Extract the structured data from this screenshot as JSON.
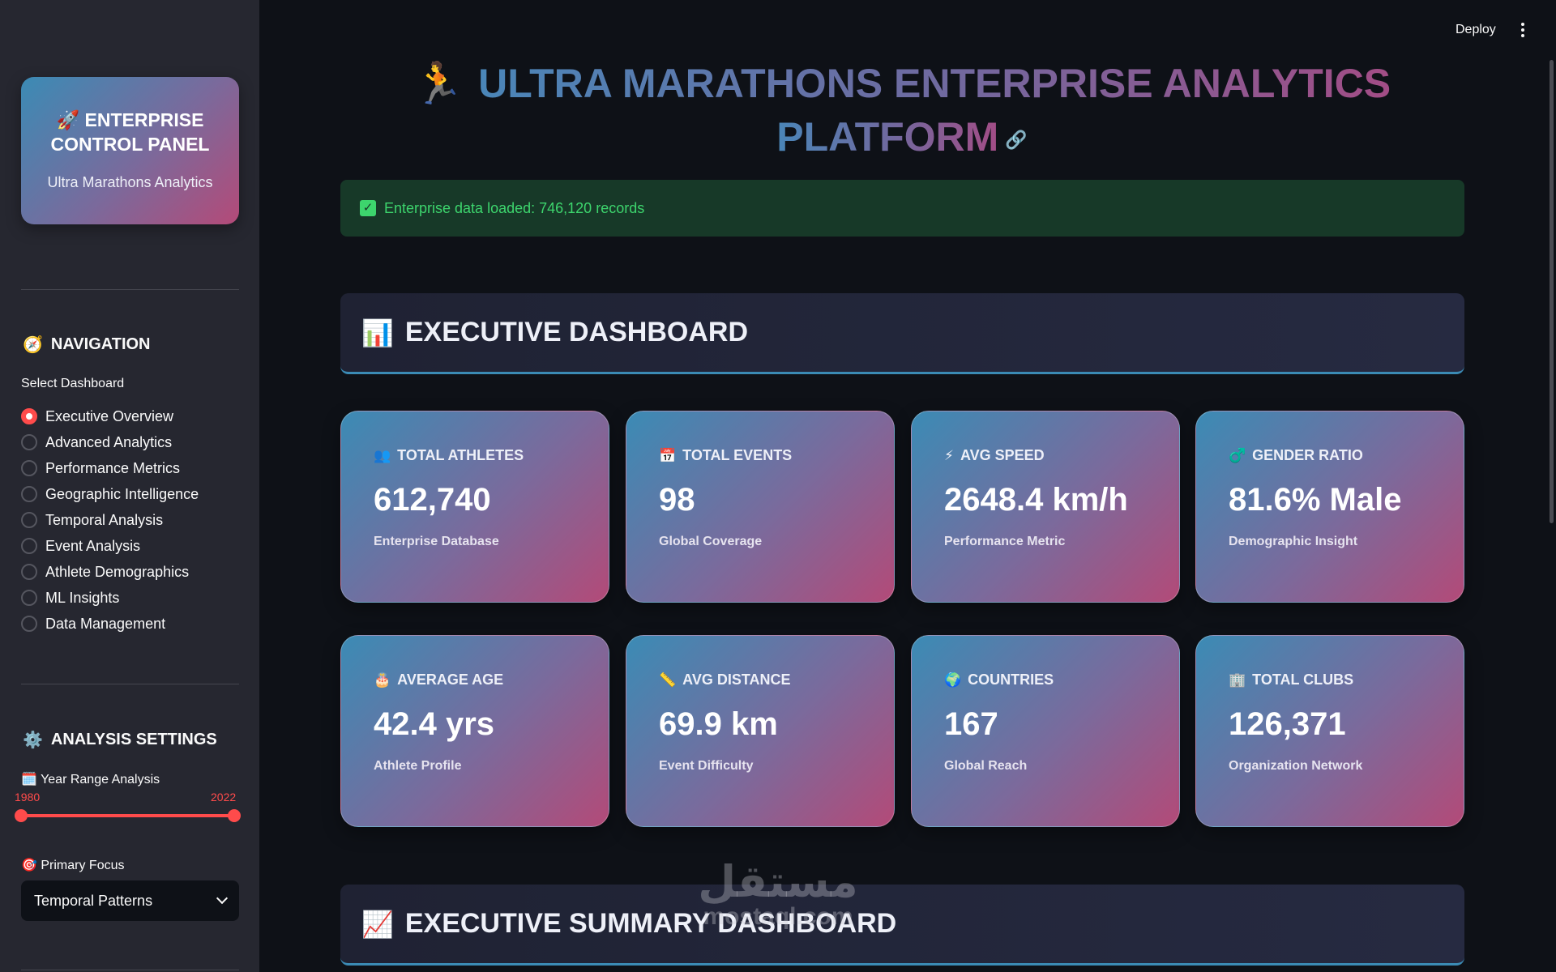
{
  "colors": {
    "accent": "#ff4b4b",
    "sidebar_bg": "#262730",
    "app_bg": "#0e1117",
    "success_bg": "#173928",
    "success_text": "#3dd56d",
    "card_gradient_start": "#3b8bb5",
    "card_gradient_end": "#b34a78"
  },
  "sidebar": {
    "control_panel": {
      "icon": "rocket-icon",
      "title": "🚀 ENTERPRISE CONTROL PANEL",
      "subtitle": "Ultra Marathons Analytics"
    },
    "navigation": {
      "icon": "compass-icon",
      "heading": "NAVIGATION",
      "select_label": "Select Dashboard",
      "selected": "Executive Overview",
      "items": [
        "Executive Overview",
        "Advanced Analytics",
        "Performance Metrics",
        "Geographic Intelligence",
        "Temporal Analysis",
        "Event Analysis",
        "Athlete Demographics",
        "ML Insights",
        "Data Management"
      ]
    },
    "analysis_settings": {
      "icon": "gear-icon",
      "heading": "ANALYSIS SETTINGS",
      "year_range_label": "🗓️ Year Range Analysis",
      "year_min": "1980",
      "year_max": "2022",
      "primary_focus_label": "🎯 Primary Focus",
      "primary_focus_value": "Temporal Patterns"
    }
  },
  "toolbar": {
    "deploy_label": "Deploy",
    "menu_icon": "kebab-menu-icon"
  },
  "main": {
    "title_icon": "🏃",
    "title_line1": "ULTRA MARATHONS ENTERPRISE ANALYTICS",
    "title_line2": "PLATFORM",
    "success_message": "Enterprise data loaded: 746,120 records",
    "executive_dashboard": {
      "icon": "📊",
      "title": "EXECUTIVE DASHBOARD"
    },
    "metrics": [
      {
        "icon": "👥",
        "label": "TOTAL ATHLETES",
        "value": "612,740",
        "sub": "Enterprise Database"
      },
      {
        "icon": "📅",
        "label": "TOTAL EVENTS",
        "value": "98",
        "sub": "Global Coverage"
      },
      {
        "icon": "⚡",
        "label": "AVG SPEED",
        "value": "2648.4 km/h",
        "sub": "Performance Metric"
      },
      {
        "icon": "♂️",
        "label": "GENDER RATIO",
        "value": "81.6% Male",
        "sub": "Demographic Insight"
      },
      {
        "icon": "🎂",
        "label": "AVERAGE AGE",
        "value": "42.4 yrs",
        "sub": "Athlete Profile"
      },
      {
        "icon": "📏",
        "label": "AVG DISTANCE",
        "value": "69.9 km",
        "sub": "Event Difficulty"
      },
      {
        "icon": "🌍",
        "label": "COUNTRIES",
        "value": "167",
        "sub": "Global Reach"
      },
      {
        "icon": "🏢",
        "label": "TOTAL CLUBS",
        "value": "126,371",
        "sub": "Organization Network"
      }
    ],
    "executive_summary": {
      "icon": "📈",
      "title": "EXECUTIVE SUMMARY DASHBOARD"
    }
  },
  "watermark": {
    "arabic": "مستقل",
    "latin": "mostaql.com"
  }
}
